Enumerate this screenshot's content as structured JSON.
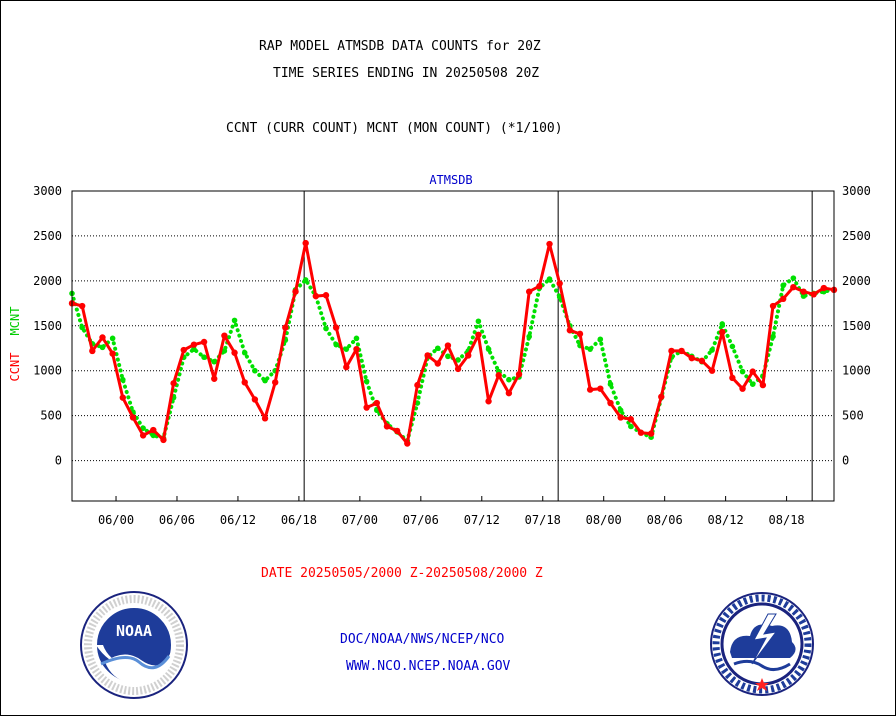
{
  "titles": {
    "line1": "RAP MODEL ATMSDB DATA COUNTS for 20Z",
    "line2": "TIME SERIES ENDING IN 20250508 20Z",
    "line3": "CCNT (CURR COUNT) MCNT (MON COUNT) (*1/100)"
  },
  "footer": {
    "date_range": "DATE 20250505/2000 Z-20250508/2000 Z",
    "org_path": "DOC/NOAA/NWS/NCEP/NCO",
    "website": "WWW.NCO.NCEP.NOAA.GOV"
  },
  "logos": {
    "noaa": {
      "text": "NOAA",
      "ring_text": "NATIONAL OCEANIC AND ATMOSPHERIC ADMINISTRATION · U.S. DEPARTMENT OF COMMERCE"
    },
    "nws": {
      "ring_text": "NATIONAL WEATHER SERVICE"
    }
  },
  "colors": {
    "ccnt": "#ff0000",
    "mcnt": "#00e000",
    "title": "#000000",
    "dataset": "#0000cc",
    "footer_date": "#ff0000",
    "footer_links": "#0000cc"
  },
  "chart_data": {
    "type": "line",
    "title": "ATMSDB",
    "ylabel_left": [
      "CCNT",
      "MCNT"
    ],
    "y_ticks": [
      0,
      500,
      1000,
      1500,
      2000,
      2500,
      3000
    ],
    "y_tick_labels": [
      "0",
      "500",
      "1000",
      "1500",
      "2000",
      "2500",
      "3000"
    ],
    "ylim": [
      -450,
      3000
    ],
    "xlim": [
      0,
      75
    ],
    "grid": true,
    "x_ticks": [
      {
        "x": 4.333,
        "label": "06/00"
      },
      {
        "x": 10.333,
        "label": "06/06"
      },
      {
        "x": 16.333,
        "label": "06/12"
      },
      {
        "x": 22.333,
        "label": "06/18"
      },
      {
        "x": 28.333,
        "label": "07/00"
      },
      {
        "x": 34.333,
        "label": "07/06"
      },
      {
        "x": 40.333,
        "label": "07/12"
      },
      {
        "x": 46.333,
        "label": "07/18"
      },
      {
        "x": 52.333,
        "label": "08/00"
      },
      {
        "x": 58.333,
        "label": "08/06"
      },
      {
        "x": 64.333,
        "label": "08/12"
      },
      {
        "x": 70.333,
        "label": "08/18"
      }
    ],
    "day_separators": [
      22.85,
      47.85,
      72.85
    ],
    "series": [
      {
        "name": "CCNT",
        "color": "#ff0000",
        "style": "solid",
        "x": [
          0,
          1,
          2,
          3,
          4,
          5,
          6,
          7,
          8,
          9,
          10,
          11,
          12,
          13,
          14,
          15,
          16,
          17,
          18,
          19,
          20,
          21,
          22,
          23,
          24,
          25,
          26,
          27,
          28,
          29,
          30,
          31,
          32,
          33,
          34,
          35,
          36,
          37,
          38,
          39,
          40,
          41,
          42,
          43,
          44,
          45,
          46,
          47,
          48,
          49,
          50,
          51,
          52,
          53,
          54,
          55,
          56,
          57,
          58,
          59,
          60,
          61,
          62,
          63,
          64,
          65,
          66,
          67,
          68,
          69,
          70,
          71,
          72,
          73,
          74,
          75
        ],
        "values": [
          1750,
          1720,
          1220,
          1370,
          1190,
          700,
          480,
          280,
          340,
          230,
          860,
          1230,
          1290,
          1320,
          910,
          1390,
          1200,
          870,
          680,
          470,
          870,
          1480,
          1880,
          2420,
          1830,
          1840,
          1480,
          1040,
          1240,
          590,
          640,
          380,
          330,
          190,
          840,
          1170,
          1080,
          1280,
          1020,
          1170,
          1400,
          660,
          950,
          750,
          960,
          1880,
          1940,
          2410,
          1970,
          1450,
          1410,
          790,
          800,
          640,
          480,
          460,
          310,
          300,
          710,
          1220,
          1220,
          1140,
          1110,
          1000,
          1430,
          920,
          800,
          990,
          840,
          1720,
          1800,
          1930,
          1880,
          1850,
          1920,
          1900
        ]
      },
      {
        "name": "MCNT",
        "color": "#00e000",
        "style": "dotted",
        "x": [
          0,
          1,
          2,
          3,
          4,
          5,
          6,
          7,
          8,
          9,
          10,
          11,
          12,
          13,
          14,
          15,
          16,
          17,
          18,
          19,
          20,
          21,
          22,
          23,
          24,
          25,
          26,
          27,
          28,
          29,
          30,
          31,
          32,
          33,
          34,
          35,
          36,
          37,
          38,
          39,
          40,
          41,
          42,
          43,
          44,
          45,
          46,
          47,
          48,
          49,
          50,
          51,
          52,
          53,
          54,
          55,
          56,
          57,
          58,
          59,
          60,
          61,
          62,
          63,
          64,
          65,
          66,
          67,
          68,
          69,
          70,
          71,
          72,
          73,
          74,
          75
        ],
        "values": [
          1860,
          1480,
          1300,
          1260,
          1360,
          900,
          540,
          360,
          280,
          250,
          700,
          1150,
          1240,
          1150,
          1100,
          1220,
          1560,
          1200,
          1000,
          890,
          1000,
          1340,
          1900,
          2010,
          1830,
          1470,
          1290,
          1240,
          1360,
          880,
          560,
          410,
          320,
          220,
          640,
          1150,
          1250,
          1160,
          1120,
          1220,
          1550,
          1240,
          990,
          900,
          930,
          1380,
          1920,
          2020,
          1820,
          1500,
          1280,
          1240,
          1350,
          850,
          560,
          380,
          310,
          260,
          700,
          1150,
          1220,
          1160,
          1100,
          1230,
          1520,
          1270,
          990,
          850,
          940,
          1380,
          1950,
          2030,
          1830,
          1860,
          1880,
          1900
        ]
      }
    ]
  }
}
